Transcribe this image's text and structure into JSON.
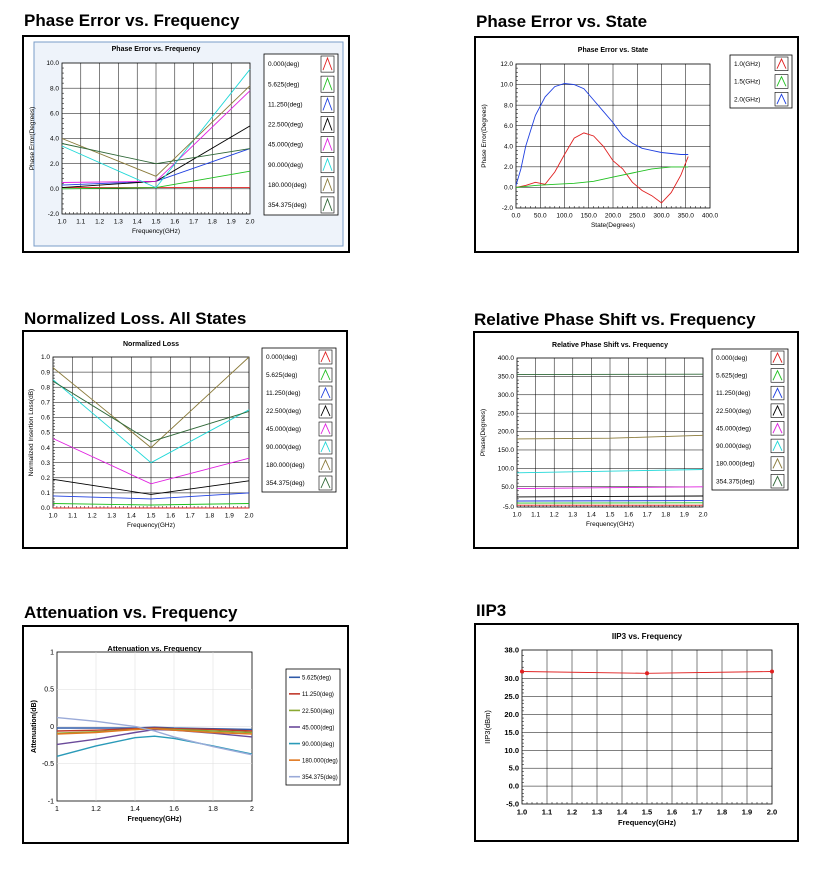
{
  "panels": [
    {
      "heading": "Phase Error vs. Frequency"
    },
    {
      "heading": "Phase Error vs. State"
    },
    {
      "heading": "Normalized Loss. All States"
    },
    {
      "heading": "Relative Phase Shift vs. Frequency"
    },
    {
      "heading": "Attenuation vs.  Frequency"
    },
    {
      "heading": "IIP3"
    }
  ],
  "chart_data": [
    {
      "type": "line",
      "title": "Phase Error vs. Frequency",
      "xlabel": "Frequency(GHz)",
      "ylabel": "Phase Error(Degrees)",
      "xlim": [
        1.0,
        2.0
      ],
      "ylim": [
        -2.0,
        10.0
      ],
      "xticks": [
        "1.0",
        "1.1",
        "1.2",
        "1.3",
        "1.4",
        "1.5",
        "1.6",
        "1.7",
        "1.8",
        "1.9",
        "2.0"
      ],
      "yticks": [
        "-2.0",
        "0.0",
        "2.0",
        "4.0",
        "6.0",
        "8.0",
        "10.0"
      ],
      "grid": true,
      "legend_position": "right",
      "series": [
        {
          "name": "0.000(deg)",
          "color": "#e02020",
          "x": [
            1.0,
            1.5,
            2.0
          ],
          "y": [
            0.1,
            0.1,
            0.1
          ]
        },
        {
          "name": "5.625(deg)",
          "color": "#20c020",
          "x": [
            1.0,
            1.5,
            2.0
          ],
          "y": [
            0.0,
            0.1,
            1.4
          ]
        },
        {
          "name": "11.250(deg)",
          "color": "#2040e0",
          "x": [
            1.0,
            1.5,
            2.0
          ],
          "y": [
            0.3,
            0.6,
            3.2
          ]
        },
        {
          "name": "22.500(deg)",
          "color": "#000000",
          "x": [
            1.0,
            1.5,
            2.0
          ],
          "y": [
            0.1,
            0.6,
            5.0
          ]
        },
        {
          "name": "45.000(deg)",
          "color": "#e020e0",
          "x": [
            1.0,
            1.5,
            2.0
          ],
          "y": [
            0.5,
            0.6,
            7.8
          ]
        },
        {
          "name": "90.000(deg)",
          "color": "#20d8d8",
          "x": [
            1.0,
            1.5,
            2.0
          ],
          "y": [
            3.4,
            0.1,
            9.5
          ]
        },
        {
          "name": "180.000(deg)",
          "color": "#8a7a3a",
          "x": [
            1.0,
            1.5,
            2.0
          ],
          "y": [
            4.0,
            1.0,
            8.2
          ]
        },
        {
          "name": "354.375(deg)",
          "color": "#306838",
          "x": [
            1.0,
            1.5,
            2.0
          ],
          "y": [
            3.6,
            2.0,
            3.2
          ]
        }
      ]
    },
    {
      "type": "line",
      "title": "Phase Error vs. State",
      "xlabel": "State(Degrees)",
      "ylabel": "Phase Error(Degrees)",
      "xlim": [
        0.0,
        400.0
      ],
      "ylim": [
        -2.0,
        12.0
      ],
      "xticks": [
        "0.0",
        "50.0",
        "100.0",
        "150.0",
        "200.0",
        "250.0",
        "300.0",
        "350.0",
        "400.0"
      ],
      "yticks": [
        "-2.0",
        "0.0",
        "2.0",
        "4.0",
        "6.0",
        "8.0",
        "10.0",
        "12.0"
      ],
      "grid": true,
      "legend_position": "top-right",
      "series": [
        {
          "name": "1.0(GHz)",
          "color": "#e02020",
          "x": [
            0,
            20,
            40,
            60,
            80,
            100,
            120,
            140,
            160,
            180,
            200,
            220,
            240,
            260,
            280,
            300,
            320,
            340,
            355
          ],
          "y": [
            0.0,
            0.2,
            0.5,
            0.3,
            1.5,
            3.2,
            4.8,
            5.3,
            5.0,
            4.0,
            2.6,
            1.8,
            0.5,
            -0.3,
            -0.8,
            -1.5,
            -0.5,
            1.2,
            3.0
          ]
        },
        {
          "name": "1.5(GHz)",
          "color": "#20c020",
          "x": [
            0,
            40,
            80,
            120,
            160,
            200,
            240,
            280,
            320,
            355
          ],
          "y": [
            0.0,
            0.2,
            0.3,
            0.4,
            0.6,
            1.0,
            1.4,
            1.8,
            2.0,
            2.0
          ]
        },
        {
          "name": "2.0(GHz)",
          "color": "#2040e0",
          "x": [
            0,
            10,
            20,
            30,
            40,
            60,
            80,
            100,
            120,
            140,
            160,
            180,
            200,
            220,
            240,
            260,
            280,
            300,
            320,
            340,
            355
          ],
          "y": [
            0.2,
            1.8,
            4.0,
            5.5,
            7.0,
            8.8,
            9.8,
            10.1,
            10.0,
            9.6,
            8.5,
            7.4,
            6.3,
            5.0,
            4.3,
            3.8,
            3.6,
            3.4,
            3.3,
            3.2,
            3.2
          ]
        }
      ]
    },
    {
      "type": "line",
      "title": "Normalized Loss",
      "xlabel": "Frequency(GHz)",
      "ylabel": "Normalized Insertion Loss(dB)",
      "xlim": [
        1.0,
        2.0
      ],
      "ylim": [
        0.0,
        1.0
      ],
      "xticks": [
        "1.0",
        "1.1",
        "1.2",
        "1.3",
        "1.4",
        "1.5",
        "1.6",
        "1.7",
        "1.8",
        "1.9",
        "2.0"
      ],
      "yticks": [
        "0.0",
        "0.1",
        "0.2",
        "0.3",
        "0.4",
        "0.5",
        "0.6",
        "0.7",
        "0.8",
        "0.9",
        "1.0"
      ],
      "grid": true,
      "legend_position": "right",
      "series": [
        {
          "name": "0.000(deg)",
          "color": "#e02020",
          "x": [
            1.0,
            1.5,
            2.0
          ],
          "y": [
            0.0,
            0.0,
            0.0
          ]
        },
        {
          "name": "5.625(deg)",
          "color": "#20c020",
          "x": [
            1.0,
            1.5,
            2.0
          ],
          "y": [
            0.03,
            0.02,
            0.03
          ]
        },
        {
          "name": "11.250(deg)",
          "color": "#2040e0",
          "x": [
            1.0,
            1.5,
            2.0
          ],
          "y": [
            0.08,
            0.06,
            0.1
          ]
        },
        {
          "name": "22.500(deg)",
          "color": "#000000",
          "x": [
            1.0,
            1.5,
            2.0
          ],
          "y": [
            0.19,
            0.09,
            0.18
          ]
        },
        {
          "name": "45.000(deg)",
          "color": "#e020e0",
          "x": [
            1.0,
            1.5,
            2.0
          ],
          "y": [
            0.46,
            0.16,
            0.33
          ]
        },
        {
          "name": "90.000(deg)",
          "color": "#20d8d8",
          "x": [
            1.0,
            1.5,
            2.0
          ],
          "y": [
            0.85,
            0.3,
            0.65
          ]
        },
        {
          "name": "180.000(deg)",
          "color": "#8a7a3a",
          "x": [
            1.0,
            1.5,
            2.0
          ],
          "y": [
            0.93,
            0.4,
            1.0
          ]
        },
        {
          "name": "354.375(deg)",
          "color": "#306838",
          "x": [
            1.0,
            1.5,
            2.0
          ],
          "y": [
            0.84,
            0.44,
            0.64
          ]
        }
      ]
    },
    {
      "type": "line",
      "title": "Relative Phase Shift vs. Frequency",
      "xlabel": "Frequency(GHz)",
      "ylabel": "Phase(Degrees)",
      "xlim": [
        1.0,
        2.0
      ],
      "ylim": [
        -5.0,
        400.0
      ],
      "xticks": [
        "1.0",
        "1.1",
        "1.2",
        "1.3",
        "1.4",
        "1.5",
        "1.6",
        "1.7",
        "1.8",
        "1.9",
        "2.0"
      ],
      "yticks": [
        "-5.0",
        "50.0",
        "100.0",
        "150.0",
        "200.0",
        "250.0",
        "300.0",
        "350.0",
        "400.0"
      ],
      "ytick_values": [
        -5,
        50,
        100,
        150,
        200,
        250,
        300,
        350,
        400
      ],
      "grid": true,
      "legend_position": "right",
      "series": [
        {
          "name": "0.000(deg)",
          "color": "#e02020",
          "x": [
            1.0,
            2.0
          ],
          "y": [
            0,
            0
          ]
        },
        {
          "name": "5.625(deg)",
          "color": "#20c020",
          "x": [
            1.0,
            2.0
          ],
          "y": [
            5.6,
            6.5
          ]
        },
        {
          "name": "11.250(deg)",
          "color": "#2040e0",
          "x": [
            1.0,
            2.0
          ],
          "y": [
            11.2,
            12.5
          ]
        },
        {
          "name": "22.500(deg)",
          "color": "#000000",
          "x": [
            1.0,
            2.0
          ],
          "y": [
            22.5,
            25
          ]
        },
        {
          "name": "45.000(deg)",
          "color": "#e020e0",
          "x": [
            1.0,
            2.0
          ],
          "y": [
            45,
            50
          ]
        },
        {
          "name": "90.000(deg)",
          "color": "#20d8d8",
          "x": [
            1.0,
            2.0
          ],
          "y": [
            88,
            97
          ]
        },
        {
          "name": "180.000(deg)",
          "color": "#8a7a3a",
          "x": [
            1.0,
            1.5,
            2.0
          ],
          "y": [
            180,
            182,
            190
          ]
        },
        {
          "name": "354.375(deg)",
          "color": "#306838",
          "x": [
            1.0,
            2.0
          ],
          "y": [
            355,
            356
          ]
        }
      ]
    },
    {
      "type": "line",
      "title": "Attenuation vs. Frequency",
      "xlabel": "Frequency(GHz)",
      "ylabel": "Attenuation(dB)",
      "xlim": [
        1,
        2
      ],
      "ylim": [
        -1,
        1
      ],
      "xticks": [
        "1",
        "1.2",
        "1.4",
        "1.6",
        "1.8",
        "2"
      ],
      "yticks": [
        "-1",
        "-0.5",
        "0",
        "0.5",
        "1"
      ],
      "grid": true,
      "legend_position": "right",
      "series": [
        {
          "name": "5.625(deg)",
          "color": "#2f5aa8",
          "x": [
            1.0,
            1.2,
            1.4,
            1.5,
            1.6,
            1.8,
            2.0
          ],
          "y": [
            -0.02,
            -0.02,
            -0.02,
            -0.01,
            -0.02,
            -0.03,
            -0.04
          ]
        },
        {
          "name": "11.250(deg)",
          "color": "#c0392b",
          "x": [
            1.0,
            1.2,
            1.4,
            1.5,
            1.6,
            1.8,
            2.0
          ],
          "y": [
            -0.06,
            -0.05,
            -0.03,
            -0.02,
            -0.03,
            -0.04,
            -0.06
          ]
        },
        {
          "name": "22.500(deg)",
          "color": "#8aa832",
          "x": [
            1.0,
            1.2,
            1.4,
            1.5,
            1.6,
            1.8,
            2.0
          ],
          "y": [
            -0.09,
            -0.07,
            -0.04,
            -0.03,
            -0.04,
            -0.06,
            -0.08
          ]
        },
        {
          "name": "45.000(deg)",
          "color": "#6a4a9a",
          "x": [
            1.0,
            1.2,
            1.4,
            1.5,
            1.6,
            1.8,
            2.0
          ],
          "y": [
            -0.24,
            -0.17,
            -0.08,
            -0.04,
            -0.05,
            -0.09,
            -0.14
          ]
        },
        {
          "name": "90.000(deg)",
          "color": "#2a9ab8",
          "x": [
            1.0,
            1.2,
            1.4,
            1.5,
            1.6,
            1.8,
            2.0
          ],
          "y": [
            -0.4,
            -0.26,
            -0.15,
            -0.13,
            -0.16,
            -0.26,
            -0.37
          ]
        },
        {
          "name": "180.000(deg)",
          "color": "#e07820",
          "x": [
            1.0,
            1.2,
            1.4,
            1.5,
            1.6,
            1.8,
            2.0
          ],
          "y": [
            -0.1,
            -0.08,
            -0.04,
            -0.03,
            -0.05,
            -0.08,
            -0.1
          ]
        },
        {
          "name": "354.375(deg)",
          "color": "#9aaad8",
          "x": [
            1.0,
            1.2,
            1.4,
            1.5,
            1.6,
            1.8,
            2.0
          ],
          "y": [
            0.12,
            0.07,
            0.0,
            -0.06,
            -0.14,
            -0.27,
            -0.38
          ]
        }
      ]
    },
    {
      "type": "line",
      "title": "IIP3 vs. Frequency",
      "xlabel": "Frequency(GHz)",
      "ylabel": "IIP3(dBm)",
      "xlim": [
        1.0,
        2.0
      ],
      "ylim": [
        -5.0,
        38.0
      ],
      "xticks": [
        "1.0",
        "1.1",
        "1.2",
        "1.3",
        "1.4",
        "1.5",
        "1.6",
        "1.7",
        "1.8",
        "1.9",
        "2.0"
      ],
      "yticks": [
        "-5.0",
        "0.0",
        "5.0",
        "10.0",
        "15.0",
        "20.0",
        "25.0",
        "30.0",
        "38.0"
      ],
      "ytick_values": [
        -5,
        0,
        5,
        10,
        15,
        20,
        25,
        30,
        38
      ],
      "grid": true,
      "legend_position": "none",
      "series": [
        {
          "name": "",
          "color": "#e02020",
          "x": [
            1.0,
            1.5,
            2.0
          ],
          "y": [
            32.0,
            31.5,
            32.0
          ],
          "markers": true
        }
      ]
    }
  ]
}
